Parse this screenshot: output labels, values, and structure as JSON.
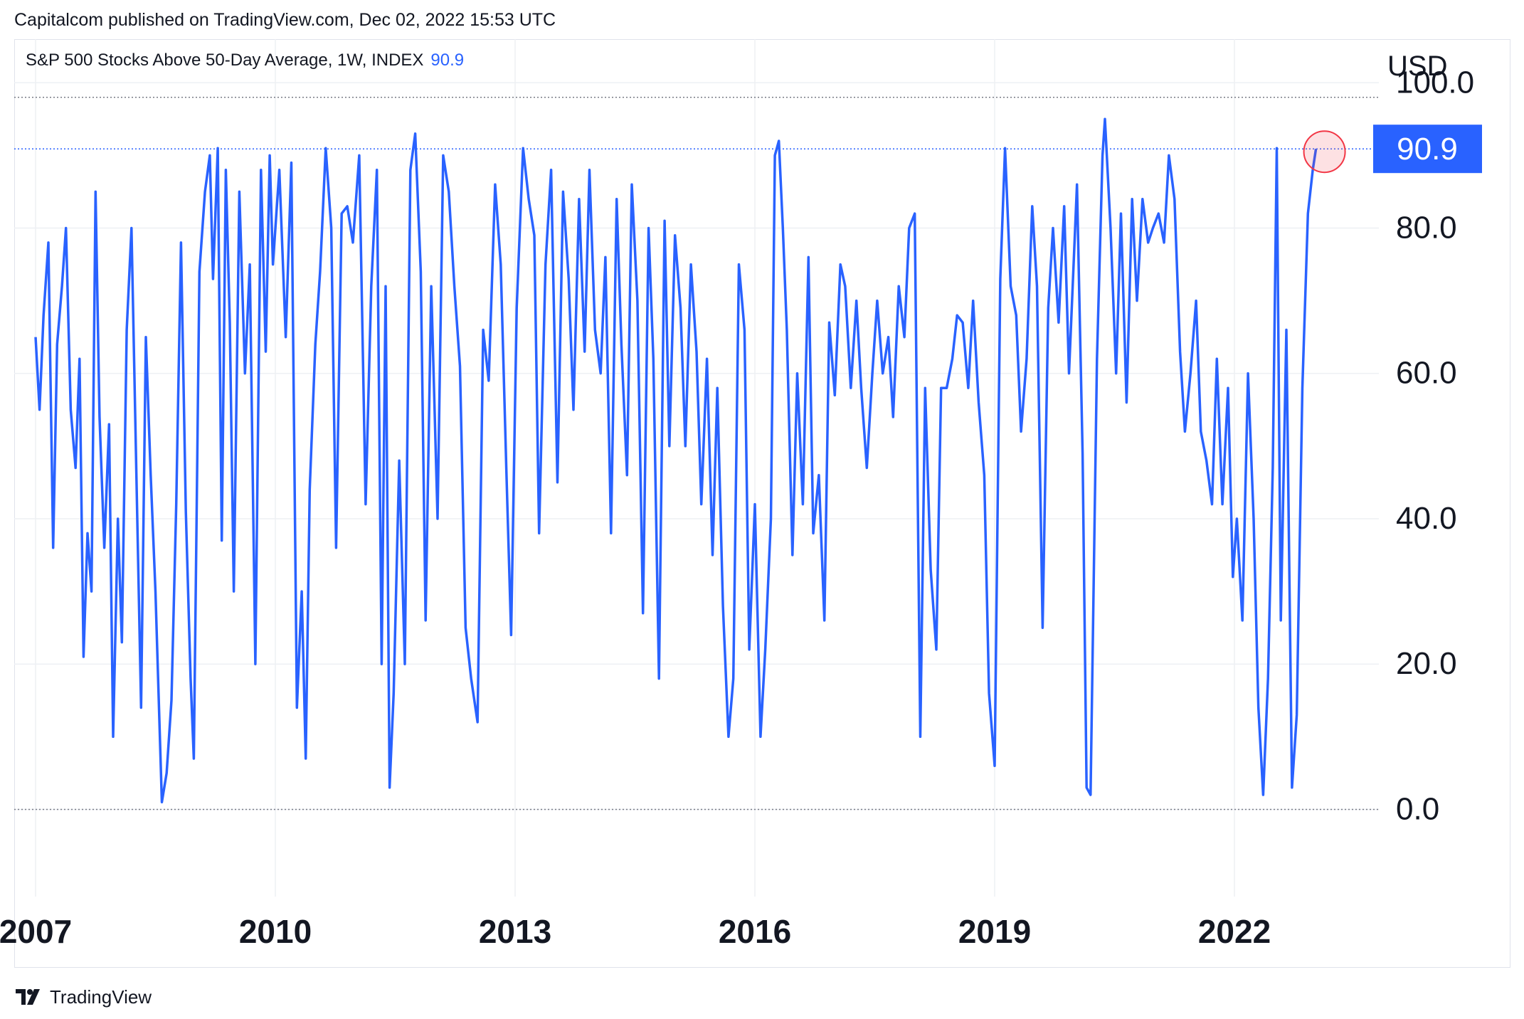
{
  "header": {
    "published": "Capitalcom published on TradingView.com, Dec 02, 2022 15:53 UTC"
  },
  "legend": {
    "title": "S&P 500 Stocks Above 50-Day Average, 1W, INDEX",
    "value": "90.9"
  },
  "footer": {
    "brand": "TradingView"
  },
  "colors": {
    "line": "#2962ff",
    "grid": "#eef0f4",
    "text": "#131722",
    "marker": "#f23645"
  },
  "chart_data": {
    "type": "line",
    "currency": "USD",
    "last_value": 90.9,
    "last_value_label": "90.9",
    "ylim": [
      -12,
      106
    ],
    "y_ticks": [
      0,
      20,
      40,
      60,
      80,
      100
    ],
    "y_tick_labels": [
      "0.0",
      "20.0",
      "40.0",
      "60.0",
      "80.0",
      "100.0"
    ],
    "x_ticks": [
      2007,
      2010,
      2013,
      2016,
      2019,
      2022
    ],
    "x_tick_labels": [
      "2007",
      "2010",
      "2013",
      "2016",
      "2019",
      "2022"
    ],
    "xlim": [
      2006.9,
      2022.55
    ],
    "grid": true,
    "series": [
      {
        "values": [
          [
            2007.0,
            65
          ],
          [
            2007.05,
            55
          ],
          [
            2007.1,
            68
          ],
          [
            2007.16,
            78
          ],
          [
            2007.22,
            36
          ],
          [
            2007.27,
            64
          ],
          [
            2007.33,
            72
          ],
          [
            2007.38,
            80
          ],
          [
            2007.44,
            55
          ],
          [
            2007.5,
            47
          ],
          [
            2007.55,
            62
          ],
          [
            2007.6,
            21
          ],
          [
            2007.65,
            38
          ],
          [
            2007.7,
            30
          ],
          [
            2007.75,
            85
          ],
          [
            2007.8,
            54
          ],
          [
            2007.86,
            36
          ],
          [
            2007.92,
            53
          ],
          [
            2007.97,
            10
          ],
          [
            2008.03,
            40
          ],
          [
            2008.08,
            23
          ],
          [
            2008.14,
            66
          ],
          [
            2008.2,
            80
          ],
          [
            2008.26,
            47
          ],
          [
            2008.32,
            14
          ],
          [
            2008.38,
            65
          ],
          [
            2008.44,
            46
          ],
          [
            2008.5,
            30
          ],
          [
            2008.58,
            1
          ],
          [
            2008.64,
            5
          ],
          [
            2008.7,
            15
          ],
          [
            2008.76,
            42
          ],
          [
            2008.82,
            78
          ],
          [
            2008.88,
            41
          ],
          [
            2008.94,
            18
          ],
          [
            2008.98,
            7
          ],
          [
            2009.05,
            74
          ],
          [
            2009.12,
            85
          ],
          [
            2009.18,
            90
          ],
          [
            2009.22,
            73
          ],
          [
            2009.28,
            91
          ],
          [
            2009.33,
            37
          ],
          [
            2009.38,
            88
          ],
          [
            2009.43,
            67
          ],
          [
            2009.48,
            30
          ],
          [
            2009.55,
            85
          ],
          [
            2009.62,
            60
          ],
          [
            2009.68,
            75
          ],
          [
            2009.75,
            20
          ],
          [
            2009.82,
            88
          ],
          [
            2009.88,
            63
          ],
          [
            2009.93,
            90
          ],
          [
            2009.97,
            75
          ],
          [
            2010.05,
            88
          ],
          [
            2010.13,
            65
          ],
          [
            2010.2,
            89
          ],
          [
            2010.27,
            14
          ],
          [
            2010.33,
            30
          ],
          [
            2010.38,
            7
          ],
          [
            2010.43,
            44
          ],
          [
            2010.5,
            64
          ],
          [
            2010.56,
            74
          ],
          [
            2010.63,
            91
          ],
          [
            2010.7,
            80
          ],
          [
            2010.76,
            36
          ],
          [
            2010.83,
            82
          ],
          [
            2010.9,
            83
          ],
          [
            2010.97,
            78
          ],
          [
            2011.05,
            90
          ],
          [
            2011.13,
            42
          ],
          [
            2011.2,
            72
          ],
          [
            2011.27,
            88
          ],
          [
            2011.33,
            20
          ],
          [
            2011.38,
            72
          ],
          [
            2011.43,
            3
          ],
          [
            2011.48,
            16
          ],
          [
            2011.55,
            48
          ],
          [
            2011.62,
            20
          ],
          [
            2011.69,
            88
          ],
          [
            2011.75,
            93
          ],
          [
            2011.82,
            74
          ],
          [
            2011.88,
            26
          ],
          [
            2011.95,
            72
          ],
          [
            2012.03,
            40
          ],
          [
            2012.1,
            90
          ],
          [
            2012.17,
            85
          ],
          [
            2012.24,
            72
          ],
          [
            2012.31,
            61
          ],
          [
            2012.38,
            25
          ],
          [
            2012.45,
            18
          ],
          [
            2012.53,
            12
          ],
          [
            2012.6,
            66
          ],
          [
            2012.67,
            59
          ],
          [
            2012.75,
            86
          ],
          [
            2012.82,
            75
          ],
          [
            2012.89,
            47
          ],
          [
            2012.95,
            24
          ],
          [
            2013.02,
            69
          ],
          [
            2013.1,
            91
          ],
          [
            2013.17,
            84
          ],
          [
            2013.24,
            79
          ],
          [
            2013.3,
            38
          ],
          [
            2013.38,
            75
          ],
          [
            2013.45,
            88
          ],
          [
            2013.53,
            45
          ],
          [
            2013.6,
            85
          ],
          [
            2013.67,
            73
          ],
          [
            2013.73,
            55
          ],
          [
            2013.8,
            84
          ],
          [
            2013.87,
            63
          ],
          [
            2013.93,
            88
          ],
          [
            2014.0,
            66
          ],
          [
            2014.07,
            60
          ],
          [
            2014.13,
            76
          ],
          [
            2014.2,
            38
          ],
          [
            2014.27,
            84
          ],
          [
            2014.33,
            64
          ],
          [
            2014.4,
            46
          ],
          [
            2014.46,
            86
          ],
          [
            2014.53,
            70
          ],
          [
            2014.6,
            27
          ],
          [
            2014.67,
            80
          ],
          [
            2014.73,
            62
          ],
          [
            2014.8,
            18
          ],
          [
            2014.87,
            81
          ],
          [
            2014.93,
            50
          ],
          [
            2015.0,
            79
          ],
          [
            2015.07,
            69
          ],
          [
            2015.13,
            50
          ],
          [
            2015.2,
            75
          ],
          [
            2015.27,
            63
          ],
          [
            2015.33,
            42
          ],
          [
            2015.4,
            62
          ],
          [
            2015.47,
            35
          ],
          [
            2015.53,
            58
          ],
          [
            2015.6,
            28
          ],
          [
            2015.67,
            10
          ],
          [
            2015.73,
            18
          ],
          [
            2015.8,
            75
          ],
          [
            2015.87,
            66
          ],
          [
            2015.93,
            22
          ],
          [
            2016.0,
            42
          ],
          [
            2016.07,
            10
          ],
          [
            2016.13,
            22
          ],
          [
            2016.2,
            40
          ],
          [
            2016.25,
            90
          ],
          [
            2016.3,
            92
          ],
          [
            2016.35,
            80
          ],
          [
            2016.4,
            66
          ],
          [
            2016.47,
            35
          ],
          [
            2016.53,
            60
          ],
          [
            2016.6,
            42
          ],
          [
            2016.67,
            76
          ],
          [
            2016.73,
            38
          ],
          [
            2016.8,
            46
          ],
          [
            2016.87,
            26
          ],
          [
            2016.93,
            67
          ],
          [
            2017.0,
            57
          ],
          [
            2017.07,
            75
          ],
          [
            2017.13,
            72
          ],
          [
            2017.2,
            58
          ],
          [
            2017.27,
            70
          ],
          [
            2017.33,
            58
          ],
          [
            2017.4,
            47
          ],
          [
            2017.47,
            60
          ],
          [
            2017.53,
            70
          ],
          [
            2017.6,
            60
          ],
          [
            2017.67,
            65
          ],
          [
            2017.73,
            54
          ],
          [
            2017.8,
            72
          ],
          [
            2017.87,
            65
          ],
          [
            2017.93,
            80
          ],
          [
            2018.0,
            82
          ],
          [
            2018.07,
            10
          ],
          [
            2018.13,
            58
          ],
          [
            2018.2,
            33
          ],
          [
            2018.27,
            22
          ],
          [
            2018.33,
            58
          ],
          [
            2018.4,
            58
          ],
          [
            2018.47,
            62
          ],
          [
            2018.53,
            68
          ],
          [
            2018.6,
            67
          ],
          [
            2018.67,
            58
          ],
          [
            2018.73,
            70
          ],
          [
            2018.8,
            56
          ],
          [
            2018.87,
            46
          ],
          [
            2018.93,
            16
          ],
          [
            2019.0,
            6
          ],
          [
            2019.07,
            73
          ],
          [
            2019.13,
            91
          ],
          [
            2019.2,
            72
          ],
          [
            2019.27,
            68
          ],
          [
            2019.33,
            52
          ],
          [
            2019.4,
            62
          ],
          [
            2019.47,
            83
          ],
          [
            2019.53,
            72
          ],
          [
            2019.6,
            25
          ],
          [
            2019.67,
            69
          ],
          [
            2019.73,
            80
          ],
          [
            2019.8,
            67
          ],
          [
            2019.87,
            83
          ],
          [
            2019.93,
            60
          ],
          [
            2020.03,
            86
          ],
          [
            2020.1,
            49
          ],
          [
            2020.15,
            3
          ],
          [
            2020.2,
            2
          ],
          [
            2020.28,
            62
          ],
          [
            2020.35,
            90
          ],
          [
            2020.38,
            95
          ],
          [
            2020.45,
            80
          ],
          [
            2020.52,
            60
          ],
          [
            2020.58,
            82
          ],
          [
            2020.65,
            56
          ],
          [
            2020.72,
            84
          ],
          [
            2020.78,
            70
          ],
          [
            2020.85,
            84
          ],
          [
            2020.92,
            78
          ],
          [
            2020.98,
            80
          ],
          [
            2021.05,
            82
          ],
          [
            2021.12,
            78
          ],
          [
            2021.18,
            90
          ],
          [
            2021.25,
            84
          ],
          [
            2021.32,
            63
          ],
          [
            2021.38,
            52
          ],
          [
            2021.45,
            60
          ],
          [
            2021.52,
            70
          ],
          [
            2021.58,
            52
          ],
          [
            2021.65,
            48
          ],
          [
            2021.72,
            42
          ],
          [
            2021.78,
            62
          ],
          [
            2021.85,
            42
          ],
          [
            2021.92,
            58
          ],
          [
            2021.98,
            32
          ],
          [
            2022.03,
            40
          ],
          [
            2022.1,
            26
          ],
          [
            2022.17,
            60
          ],
          [
            2022.24,
            40
          ],
          [
            2022.3,
            14
          ],
          [
            2022.36,
            2
          ],
          [
            2022.42,
            18
          ],
          [
            2022.48,
            47
          ],
          [
            2022.53,
            91
          ],
          [
            2022.58,
            26
          ],
          [
            2022.65,
            66
          ],
          [
            2022.72,
            3
          ],
          [
            2022.78,
            13
          ],
          [
            2022.85,
            58
          ],
          [
            2022.92,
            82
          ],
          [
            2022.98,
            88
          ],
          [
            2023.02,
            90.9
          ]
        ]
      }
    ]
  }
}
